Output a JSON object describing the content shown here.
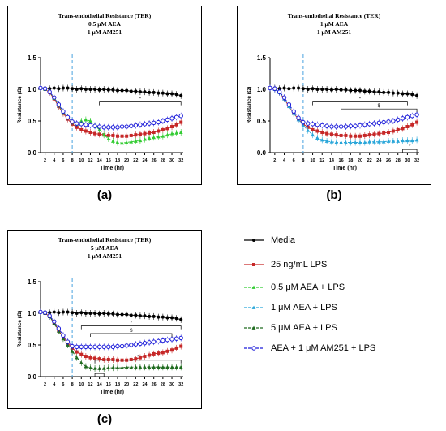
{
  "panel_labels": [
    "(a)",
    "(b)",
    "(c)"
  ],
  "legend": [
    {
      "label": "Media",
      "color": "#000000",
      "marker": "circle",
      "dash": "solid"
    },
    {
      "label": "25 ng/mL LPS",
      "color": "#c62828",
      "marker": "square",
      "dash": "solid"
    },
    {
      "label": "0.5 μM AEA + LPS",
      "color": "#33cc33",
      "marker": "triangle",
      "dash": "dashed"
    },
    {
      "label": "1 μM AEA + LPS",
      "color": "#29a6d9",
      "marker": "triangle",
      "dash": "dashed"
    },
    {
      "label": "5 μM AEA + LPS",
      "color": "#1f6b1f",
      "marker": "triangle",
      "dash": "dashed"
    },
    {
      "label": "AEA + 1 μM AM251 + LPS",
      "color": "#1a1ad9",
      "marker": "circle-open",
      "dash": "dashed"
    }
  ],
  "chart_data": [
    {
      "type": "line",
      "title_lines": [
        "Trans-endothelial Resistance (TER)",
        "0.5 μM AEA",
        "1 μM AM251"
      ],
      "xlabel": "Time (hr)",
      "ylabel": "Resistance (Ω)",
      "xlim": [
        1,
        32.5
      ],
      "ylim": [
        0,
        1.5
      ],
      "xticks": [
        2,
        4,
        6,
        8,
        10,
        12,
        14,
        16,
        18,
        20,
        22,
        24,
        26,
        28,
        30,
        32
      ],
      "yticks": [
        0.0,
        0.5,
        1.0,
        1.5
      ],
      "ytick_labels": [
        "0.0",
        "0.5",
        "1.0",
        "1.5"
      ],
      "vline_x": 8,
      "x": [
        1,
        2,
        3,
        4,
        5,
        6,
        7,
        8,
        9,
        10,
        11,
        12,
        13,
        14,
        15,
        16,
        17,
        18,
        19,
        20,
        21,
        22,
        23,
        24,
        25,
        26,
        27,
        28,
        29,
        30,
        31,
        32
      ],
      "series": [
        {
          "name": "Media",
          "color": "#000000",
          "marker": "circle",
          "dash": "solid",
          "values": [
            1.02,
            1.02,
            1.01,
            1.02,
            1.01,
            1.02,
            1.02,
            1.01,
            1.0,
            1.01,
            1.0,
            1.0,
            1.0,
            0.99,
            1.0,
            0.99,
            0.99,
            0.98,
            0.98,
            0.98,
            0.97,
            0.97,
            0.96,
            0.96,
            0.95,
            0.95,
            0.94,
            0.94,
            0.93,
            0.93,
            0.92,
            0.9
          ]
        },
        {
          "name": "25 ng/mL LPS",
          "color": "#c62828",
          "marker": "square",
          "dash": "solid",
          "values": [
            1.02,
            1.0,
            0.95,
            0.85,
            0.73,
            0.62,
            0.53,
            0.45,
            0.4,
            0.36,
            0.34,
            0.32,
            0.3,
            0.29,
            0.28,
            0.27,
            0.27,
            0.26,
            0.26,
            0.26,
            0.27,
            0.28,
            0.29,
            0.3,
            0.31,
            0.32,
            0.34,
            0.36,
            0.38,
            0.41,
            0.44,
            0.48
          ]
        },
        {
          "name": "0.5 μM AEA + LPS",
          "color": "#33cc33",
          "marker": "triangle",
          "dash": "dashed",
          "values": [
            1.02,
            1.0,
            0.96,
            0.86,
            0.75,
            0.64,
            0.56,
            0.48,
            0.45,
            0.5,
            0.52,
            0.5,
            0.43,
            0.36,
            0.28,
            0.22,
            0.18,
            0.16,
            0.15,
            0.16,
            0.17,
            0.18,
            0.19,
            0.21,
            0.23,
            0.24,
            0.25,
            0.26,
            0.28,
            0.3,
            0.31,
            0.32
          ]
        },
        {
          "name": "AEA + 1 μM AM251 + LPS",
          "color": "#1a1ad9",
          "marker": "circle-open",
          "dash": "dashed",
          "values": [
            1.02,
            1.01,
            0.96,
            0.87,
            0.76,
            0.65,
            0.56,
            0.49,
            0.46,
            0.45,
            0.44,
            0.43,
            0.42,
            0.41,
            0.4,
            0.4,
            0.4,
            0.4,
            0.41,
            0.41,
            0.42,
            0.43,
            0.44,
            0.45,
            0.46,
            0.47,
            0.48,
            0.5,
            0.52,
            0.54,
            0.56,
            0.58
          ]
        }
      ],
      "brackets": [
        {
          "x1": 14,
          "x2": 32,
          "y": 0.8,
          "label": "*"
        }
      ]
    },
    {
      "type": "line",
      "title_lines": [
        "Trans-endothelial Resistance (TER)",
        "1 μM AEA",
        "1 μM AM251"
      ],
      "xlabel": "Time (hr)",
      "ylabel": "Resistance (Ω)",
      "xlim": [
        1,
        32.5
      ],
      "ylim": [
        0,
        1.5
      ],
      "xticks": [
        2,
        4,
        6,
        8,
        10,
        12,
        14,
        16,
        18,
        20,
        22,
        24,
        26,
        28,
        30,
        32
      ],
      "yticks": [
        0.0,
        0.5,
        1.0,
        1.5
      ],
      "ytick_labels": [
        "0.0",
        "0.5",
        "1.0",
        "1.5"
      ],
      "vline_x": 8,
      "x": [
        1,
        2,
        3,
        4,
        5,
        6,
        7,
        8,
        9,
        10,
        11,
        12,
        13,
        14,
        15,
        16,
        17,
        18,
        19,
        20,
        21,
        22,
        23,
        24,
        25,
        26,
        27,
        28,
        29,
        30,
        31,
        32
      ],
      "series": [
        {
          "name": "Media",
          "color": "#000000",
          "marker": "circle",
          "dash": "solid",
          "values": [
            1.02,
            1.02,
            1.01,
            1.02,
            1.01,
            1.02,
            1.02,
            1.01,
            1.0,
            1.01,
            1.0,
            1.0,
            1.0,
            0.99,
            1.0,
            0.99,
            0.99,
            0.98,
            0.98,
            0.98,
            0.97,
            0.97,
            0.96,
            0.96,
            0.95,
            0.95,
            0.94,
            0.94,
            0.93,
            0.93,
            0.92,
            0.9
          ]
        },
        {
          "name": "25 ng/mL LPS",
          "color": "#c62828",
          "marker": "square",
          "dash": "solid",
          "values": [
            1.02,
            1.0,
            0.95,
            0.85,
            0.73,
            0.62,
            0.53,
            0.45,
            0.4,
            0.36,
            0.34,
            0.32,
            0.3,
            0.29,
            0.28,
            0.27,
            0.27,
            0.26,
            0.26,
            0.26,
            0.27,
            0.28,
            0.29,
            0.3,
            0.31,
            0.32,
            0.34,
            0.36,
            0.38,
            0.41,
            0.44,
            0.48
          ]
        },
        {
          "name": "1 μM AEA + LPS",
          "color": "#29a6d9",
          "marker": "triangle",
          "dash": "dashed",
          "values": [
            1.02,
            1.0,
            0.95,
            0.85,
            0.73,
            0.62,
            0.52,
            0.43,
            0.35,
            0.28,
            0.23,
            0.2,
            0.18,
            0.17,
            0.16,
            0.16,
            0.16,
            0.16,
            0.16,
            0.16,
            0.16,
            0.17,
            0.17,
            0.17,
            0.17,
            0.18,
            0.18,
            0.18,
            0.19,
            0.19,
            0.19,
            0.2
          ]
        },
        {
          "name": "AEA + 1 μM AM251 + LPS",
          "color": "#1a1ad9",
          "marker": "circle-open",
          "dash": "dashed",
          "values": [
            1.02,
            1.01,
            0.96,
            0.87,
            0.76,
            0.65,
            0.55,
            0.48,
            0.46,
            0.45,
            0.44,
            0.43,
            0.42,
            0.41,
            0.41,
            0.41,
            0.41,
            0.42,
            0.42,
            0.43,
            0.44,
            0.45,
            0.46,
            0.47,
            0.48,
            0.49,
            0.5,
            0.52,
            0.54,
            0.56,
            0.58,
            0.6
          ]
        }
      ],
      "brackets": [
        {
          "x1": 10,
          "x2": 30,
          "y": 0.8,
          "label": "*"
        },
        {
          "x1": 16,
          "x2": 32,
          "y": 0.69,
          "label": "$"
        },
        {
          "x1": 29,
          "x2": 32,
          "y": 0.05,
          "label": "*"
        }
      ]
    },
    {
      "type": "line",
      "title_lines": [
        "Trans-endothelial Resistance (TER)",
        "5 μM AEA",
        "1 μM AM251"
      ],
      "xlabel": "Time (hr)",
      "ylabel": "Resistance (Ω)",
      "xlim": [
        1,
        32.5
      ],
      "ylim": [
        0,
        1.5
      ],
      "xticks": [
        2,
        4,
        6,
        8,
        10,
        12,
        14,
        16,
        18,
        20,
        22,
        24,
        26,
        28,
        30,
        32
      ],
      "yticks": [
        0.0,
        0.5,
        1.0,
        1.5
      ],
      "ytick_labels": [
        "0.0",
        "0.5",
        "1.0",
        "1.5"
      ],
      "vline_x": 8,
      "x": [
        1,
        2,
        3,
        4,
        5,
        6,
        7,
        8,
        9,
        10,
        11,
        12,
        13,
        14,
        15,
        16,
        17,
        18,
        19,
        20,
        21,
        22,
        23,
        24,
        25,
        26,
        27,
        28,
        29,
        30,
        31,
        32
      ],
      "series": [
        {
          "name": "Media",
          "color": "#000000",
          "marker": "circle",
          "dash": "solid",
          "values": [
            1.02,
            1.02,
            1.01,
            1.02,
            1.01,
            1.02,
            1.02,
            1.01,
            1.0,
            1.01,
            1.0,
            1.0,
            1.0,
            0.99,
            1.0,
            0.99,
            0.99,
            0.98,
            0.98,
            0.98,
            0.97,
            0.97,
            0.96,
            0.96,
            0.95,
            0.95,
            0.94,
            0.94,
            0.93,
            0.93,
            0.92,
            0.9
          ]
        },
        {
          "name": "25 ng/mL LPS",
          "color": "#c62828",
          "marker": "square",
          "dash": "solid",
          "values": [
            1.02,
            1.0,
            0.95,
            0.85,
            0.73,
            0.62,
            0.53,
            0.45,
            0.39,
            0.35,
            0.32,
            0.3,
            0.29,
            0.28,
            0.27,
            0.27,
            0.27,
            0.26,
            0.26,
            0.26,
            0.27,
            0.28,
            0.3,
            0.32,
            0.34,
            0.36,
            0.37,
            0.38,
            0.4,
            0.42,
            0.45,
            0.48
          ]
        },
        {
          "name": "5 μM AEA + LPS",
          "color": "#1f6b1f",
          "marker": "triangle",
          "dash": "dashed",
          "values": [
            1.02,
            1.0,
            0.95,
            0.84,
            0.72,
            0.6,
            0.5,
            0.4,
            0.3,
            0.22,
            0.16,
            0.14,
            0.13,
            0.13,
            0.13,
            0.14,
            0.14,
            0.14,
            0.14,
            0.15,
            0.15,
            0.15,
            0.15,
            0.15,
            0.15,
            0.15,
            0.15,
            0.15,
            0.15,
            0.15,
            0.15,
            0.15
          ]
        },
        {
          "name": "AEA + 1 μM AM251 + LPS",
          "color": "#1a1ad9",
          "marker": "circle-open",
          "dash": "dashed",
          "values": [
            1.02,
            1.01,
            0.96,
            0.87,
            0.76,
            0.65,
            0.55,
            0.48,
            0.47,
            0.47,
            0.47,
            0.47,
            0.47,
            0.47,
            0.47,
            0.47,
            0.47,
            0.48,
            0.48,
            0.49,
            0.5,
            0.51,
            0.52,
            0.53,
            0.54,
            0.55,
            0.56,
            0.57,
            0.58,
            0.59,
            0.6,
            0.61
          ]
        }
      ],
      "brackets": [
        {
          "x1": 10,
          "x2": 32,
          "y": 0.8,
          "label": "*"
        },
        {
          "x1": 12,
          "x2": 30,
          "y": 0.68,
          "label": "$"
        },
        {
          "x1": 13,
          "x2": 32,
          "y": 0.26,
          "label": "*"
        },
        {
          "x1": 13,
          "x2": 15,
          "y": 0.05,
          "label": "*"
        }
      ]
    }
  ]
}
